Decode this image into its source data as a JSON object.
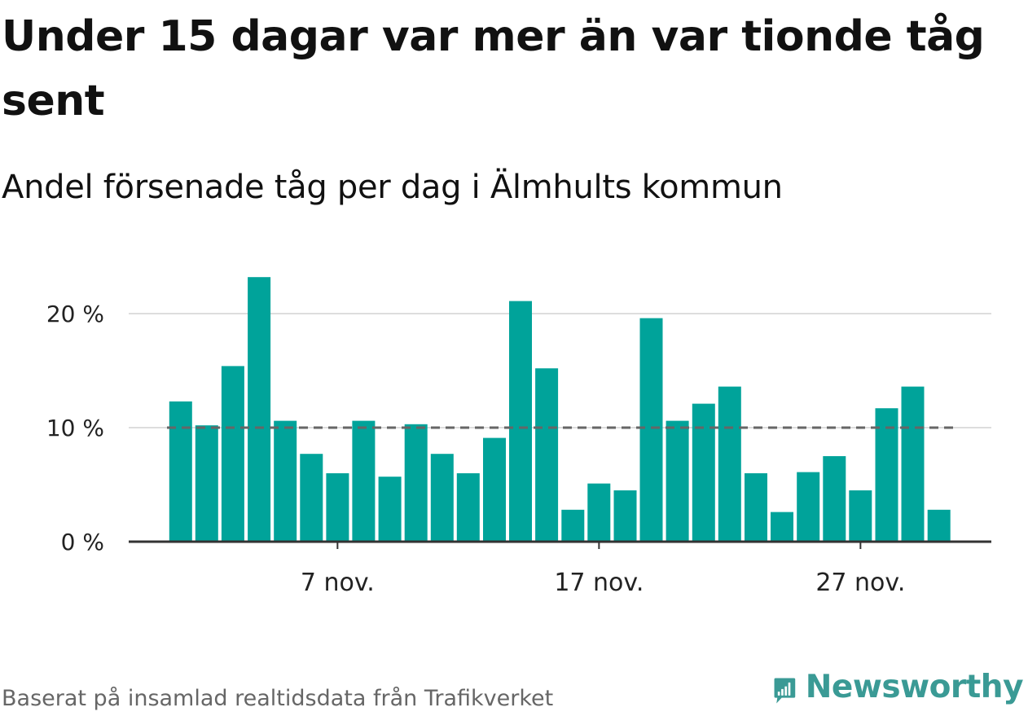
{
  "title": "Under 15 dagar var mer än var tionde tåg sent",
  "subtitle": "Andel försenade tåg per dag i Älmhults kommun",
  "source": "Baserat på insamlad realtidsdata från Trafikverket",
  "brand": {
    "name": "Newsworthy",
    "icon": "newsworthy-logo-icon",
    "color": "#3a9a95"
  },
  "colors": {
    "bar": "#00a39a",
    "grid": "#dddddd",
    "axis": "#333333",
    "reference_line": "#666666"
  },
  "chart_data": {
    "type": "bar",
    "title": "Andel försenade tåg per dag i Älmhults kommun",
    "xlabel": "",
    "ylabel": "",
    "x": [
      "1 nov.",
      "2 nov.",
      "3 nov.",
      "4 nov.",
      "5 nov.",
      "6 nov.",
      "7 nov.",
      "8 nov.",
      "9 nov.",
      "10 nov.",
      "11 nov.",
      "12 nov.",
      "13 nov.",
      "14 nov.",
      "15 nov.",
      "16 nov.",
      "17 nov.",
      "18 nov.",
      "19 nov.",
      "20 nov.",
      "21 nov.",
      "22 nov.",
      "23 nov.",
      "24 nov.",
      "25 nov.",
      "26 nov.",
      "27 nov.",
      "28 nov.",
      "29 nov.",
      "30 nov."
    ],
    "values": [
      12.3,
      10.2,
      15.4,
      23.2,
      10.6,
      7.7,
      6.0,
      10.6,
      5.7,
      10.3,
      7.7,
      6.0,
      9.1,
      21.1,
      15.2,
      2.8,
      5.1,
      4.5,
      19.6,
      10.6,
      12.1,
      13.6,
      6.0,
      2.6,
      6.1,
      7.5,
      4.5,
      11.7,
      13.6,
      2.8
    ],
    "x_ticks": [
      "7 nov.",
      "17 nov.",
      "27 nov."
    ],
    "y_ticks": [
      "0 %",
      "10 %",
      "20 %"
    ],
    "y_tick_values": [
      0,
      10,
      20
    ],
    "ylim": [
      0,
      25
    ],
    "reference_line": 10,
    "grid": true,
    "legend": "none"
  }
}
